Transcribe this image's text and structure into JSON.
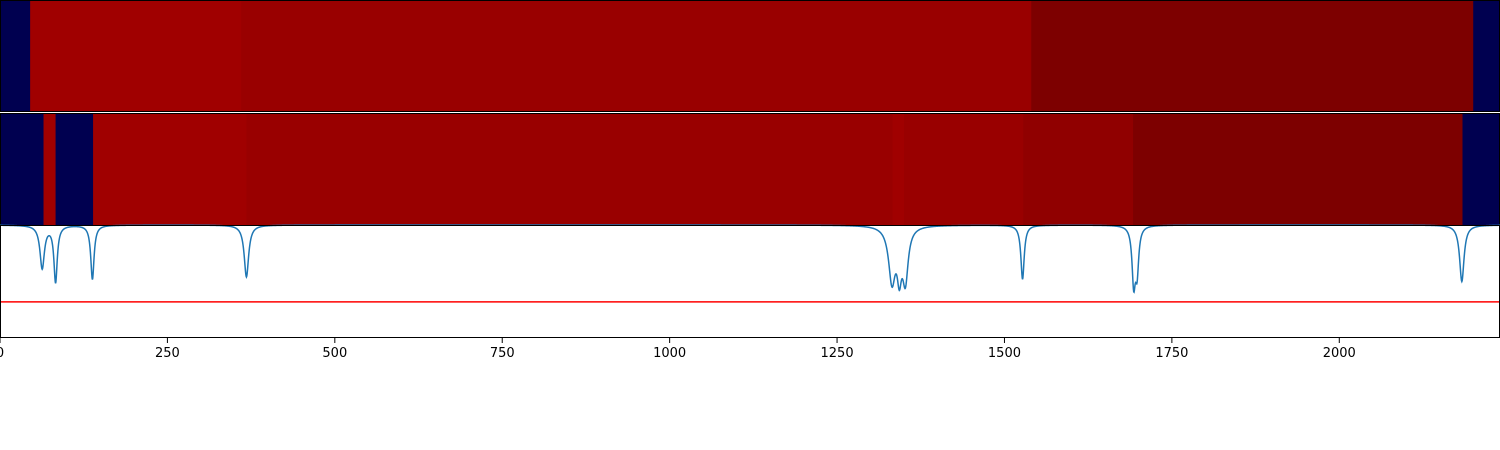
{
  "chart_data": [
    {
      "type": "heatmap",
      "title": "",
      "xlim": [
        0,
        2240
      ],
      "segments": [
        {
          "x0": 0,
          "x1": 45,
          "color": "#000050"
        },
        {
          "x0": 45,
          "x1": 360,
          "color": "#a00000"
        },
        {
          "x0": 360,
          "x1": 1540,
          "color": "#990000"
        },
        {
          "x0": 1540,
          "x1": 2200,
          "color": "#7d0000"
        },
        {
          "x0": 2200,
          "x1": 2240,
          "color": "#000050"
        }
      ]
    },
    {
      "type": "heatmap",
      "title": "",
      "xlim": [
        0,
        2240
      ],
      "segments": [
        {
          "x0": 0,
          "x1": 65,
          "color": "#000050"
        },
        {
          "x0": 65,
          "x1": 83,
          "color": "#a00000"
        },
        {
          "x0": 83,
          "x1": 139,
          "color": "#000050"
        },
        {
          "x0": 139,
          "x1": 368,
          "color": "#a00000"
        },
        {
          "x0": 368,
          "x1": 1333,
          "color": "#990000"
        },
        {
          "x0": 1333,
          "x1": 1350,
          "color": "#a00000"
        },
        {
          "x0": 1350,
          "x1": 1528,
          "color": "#990000"
        },
        {
          "x0": 1528,
          "x1": 1692,
          "color": "#900000"
        },
        {
          "x0": 1692,
          "x1": 2184,
          "color": "#7d0000"
        },
        {
          "x0": 2184,
          "x1": 2240,
          "color": "#000050"
        }
      ]
    },
    {
      "type": "line",
      "title": "",
      "xlabel": "",
      "ylabel": "",
      "xlim": [
        0,
        2240
      ],
      "ylim": [
        0,
        1
      ],
      "xticks": [
        0,
        250,
        500,
        750,
        1000,
        1250,
        1500,
        1750,
        2000
      ],
      "xtick_labels": [
        "0",
        "250",
        "500",
        "750",
        "1000",
        "1250",
        "1500",
        "1750",
        "2000"
      ],
      "series": [
        {
          "color": "#1f77b4",
          "baseline": 1.0,
          "dips": [
            {
              "x": 63,
              "depth": 0.38,
              "width": 4
            },
            {
              "x": 83,
              "depth": 0.5,
              "width": 3
            },
            {
              "x": 138,
              "depth": 0.48,
              "width": 3
            },
            {
              "x": 368,
              "depth": 0.46,
              "width": 4
            },
            {
              "x": 1332,
              "depth": 0.48,
              "width": 6
            },
            {
              "x": 1343,
              "depth": 0.36,
              "width": 4
            },
            {
              "x": 1352,
              "depth": 0.46,
              "width": 5
            },
            {
              "x": 1527,
              "depth": 0.48,
              "width": 3
            },
            {
              "x": 1693,
              "depth": 0.49,
              "width": 3
            },
            {
              "x": 1698,
              "depth": 0.38,
              "width": 3
            },
            {
              "x": 2183,
              "depth": 0.5,
              "width": 4
            }
          ]
        },
        {
          "color": "#ff0000",
          "constant": 0.32
        }
      ]
    }
  ]
}
